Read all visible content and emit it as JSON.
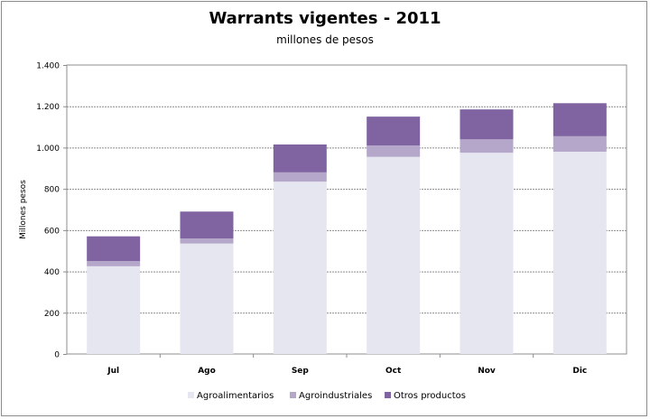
{
  "chart_data": {
    "type": "bar",
    "stacked": true,
    "title": "Warrants vigentes - 2011",
    "subtitle": "millones de pesos",
    "xlabel": "",
    "ylabel": "Millones pesos",
    "ylim": [
      0,
      1400
    ],
    "yticks": [
      0,
      200,
      400,
      600,
      800,
      1000,
      1200,
      1400
    ],
    "ytick_labels": [
      "0",
      "200",
      "400",
      "600",
      "800",
      "1.000",
      "1.200",
      "1.400"
    ],
    "categories": [
      "Jul",
      "Ago",
      "Sep",
      "Oct",
      "Nov",
      "Dic"
    ],
    "series": [
      {
        "name": "Agroalimentarios",
        "color": "#e6e6f0",
        "values": [
          425,
          535,
          835,
          955,
          975,
          980
        ]
      },
      {
        "name": "Agroindustriales",
        "color": "#b4a7c9",
        "values": [
          25,
          25,
          45,
          55,
          65,
          75
        ]
      },
      {
        "name": "Otros productos",
        "color": "#8064a2",
        "values": [
          120,
          130,
          135,
          140,
          145,
          160
        ]
      }
    ],
    "grid": true,
    "legend_position": "bottom"
  }
}
